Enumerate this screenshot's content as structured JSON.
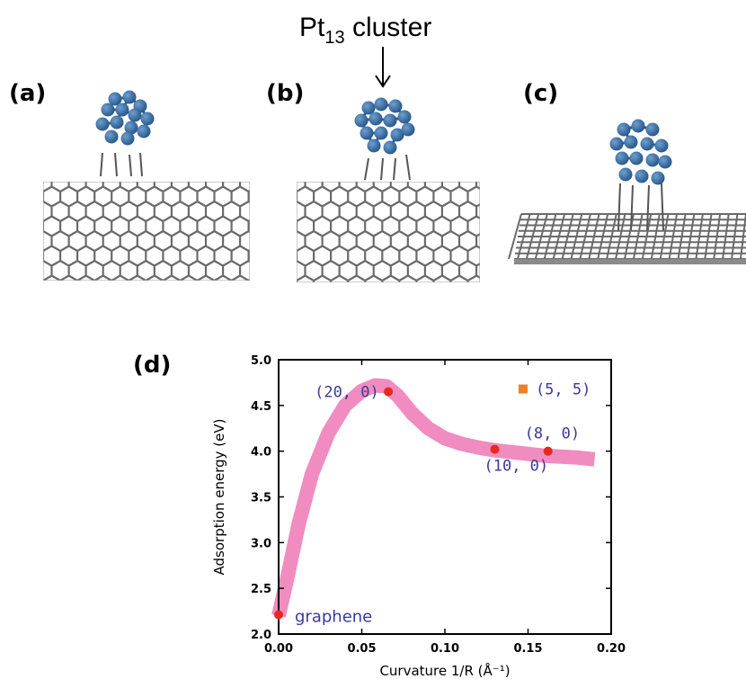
{
  "figure": {
    "title_main": "Pt",
    "title_sub": "13",
    "title_rest": " cluster",
    "panels": [
      "(a)",
      "(b)",
      "(c)",
      "(d)"
    ]
  },
  "colors": {
    "atom": "#2a5a8c",
    "atom_highlight": "#6f9fd0",
    "lattice": "#6a6a6a",
    "band": "#f08cc0",
    "point": "#e8281e",
    "square": "#f07f2a",
    "label": "#3a3a9a"
  },
  "chart_data": {
    "type": "scatter",
    "xlabel": "Curvature 1/R (Å⁻¹)",
    "ylabel": "Adsorption energy (eV)",
    "xlim": [
      0.0,
      0.2
    ],
    "ylim": [
      2.0,
      5.0
    ],
    "xticks": [
      "0.00",
      "0.05",
      "0.10",
      "0.15",
      "0.20"
    ],
    "yticks": [
      "2.0",
      "2.5",
      "3.0",
      "3.5",
      "4.0",
      "4.5",
      "5.0"
    ],
    "xtick_values": [
      0.0,
      0.05,
      0.1,
      0.15,
      0.2
    ],
    "ytick_values": [
      2.0,
      2.5,
      3.0,
      3.5,
      4.0,
      4.5,
      5.0
    ],
    "points": [
      {
        "label": "graphene",
        "x": 0.0,
        "y": 2.21,
        "marker": "circle"
      },
      {
        "label": "(20, 0)",
        "x": 0.066,
        "y": 4.65,
        "marker": "circle"
      },
      {
        "label": "(10, 0)",
        "x": 0.13,
        "y": 4.02,
        "marker": "circle"
      },
      {
        "label": "(8, 0)",
        "x": 0.162,
        "y": 4.0,
        "marker": "circle"
      },
      {
        "label": "(5, 5)",
        "x": 0.147,
        "y": 4.68,
        "marker": "square"
      }
    ],
    "trend_curve": {
      "x": [
        0.0,
        0.005,
        0.012,
        0.02,
        0.03,
        0.04,
        0.05,
        0.058,
        0.065,
        0.072,
        0.08,
        0.09,
        0.1,
        0.11,
        0.12,
        0.13,
        0.14,
        0.15,
        0.16,
        0.17,
        0.18,
        0.19
      ],
      "y": [
        2.2,
        2.6,
        3.2,
        3.75,
        4.2,
        4.5,
        4.66,
        4.72,
        4.71,
        4.6,
        4.42,
        4.25,
        4.14,
        4.08,
        4.04,
        4.01,
        3.99,
        3.97,
        3.95,
        3.94,
        3.93,
        3.91
      ]
    }
  }
}
